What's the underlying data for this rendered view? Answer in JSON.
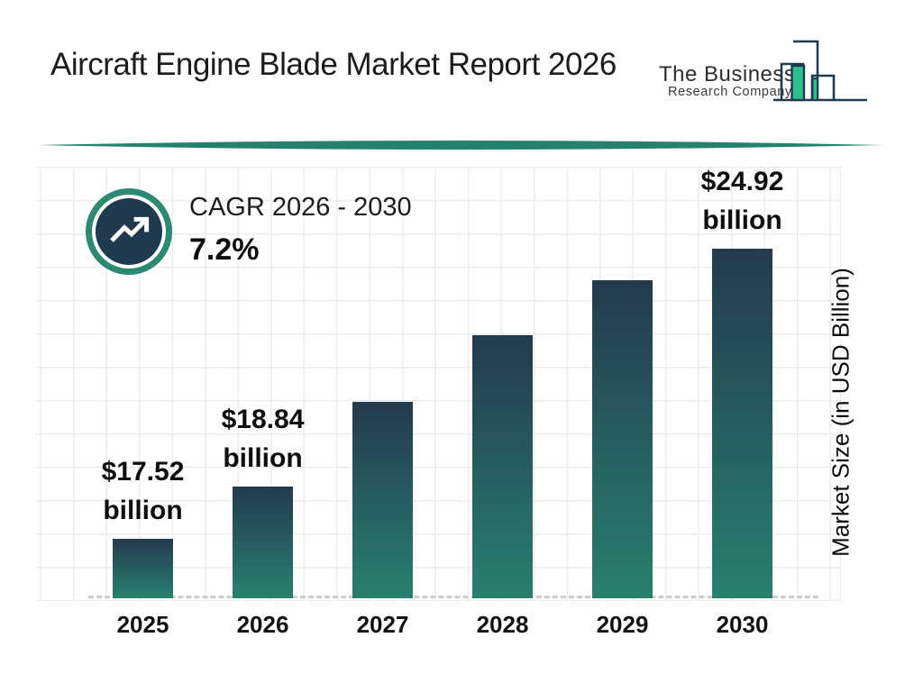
{
  "header": {
    "title": "Aircraft Engine Blade Market Report 2026",
    "logo": {
      "line1": "The Business",
      "line2": "Research Company"
    }
  },
  "cagr_badge": {
    "label": "CAGR 2026 - 2030",
    "value": "7.2%",
    "icon": "trending-up-icon"
  },
  "chart_data": {
    "type": "bar",
    "title": "Aircraft Engine Blade Market Report 2026",
    "categories": [
      "2025",
      "2026",
      "2027",
      "2028",
      "2029",
      "2030"
    ],
    "values": [
      17.52,
      18.84,
      21.0,
      22.7,
      24.1,
      24.92
    ],
    "value_labels": [
      "$17.52 billion",
      "$18.84 billion",
      null,
      null,
      null,
      "$24.92 billion"
    ],
    "xlabel": "",
    "ylabel": "Market Size (in USD Billion)",
    "ylim": [
      16,
      27
    ],
    "grid": true,
    "legend_position": "none"
  },
  "colors": {
    "bar_gradient_top": "#243a4e",
    "bar_gradient_bottom": "#28806f",
    "badge_ring_teal": "#2d8a72",
    "badge_core_navy": "#1f3a4e",
    "divider_teal": "#24826c",
    "logo_green": "#2ebd8d",
    "logo_navy": "#1e3c50",
    "grid_line": "#ececec",
    "baseline_dash": "#cdcdcd"
  }
}
